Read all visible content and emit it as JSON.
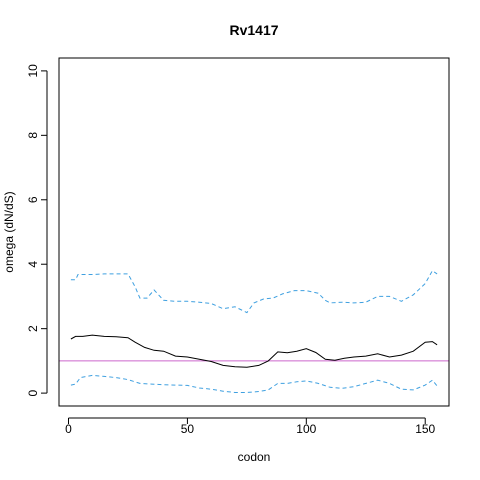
{
  "chart_data": {
    "type": "line",
    "title": "Rv1417",
    "xlabel": "codon",
    "ylabel": "omega (dN/dS)",
    "xlim": [
      -4,
      160
    ],
    "ylim": [
      -0.4,
      10.4
    ],
    "x_ticks": [
      0,
      50,
      100,
      150
    ],
    "y_ticks": [
      0,
      2,
      4,
      6,
      8,
      10
    ],
    "grid": false,
    "legend": "none",
    "colors": {
      "omega": "#000000",
      "ci": "#3fa0e0",
      "reference": "#cc66cc"
    },
    "reference_line": 1.0,
    "series": [
      {
        "style": "solid",
        "x": [
          1,
          3,
          6,
          10,
          15,
          20,
          25,
          28,
          32,
          36,
          40,
          45,
          50,
          55,
          60,
          65,
          70,
          75,
          80,
          84,
          88,
          92,
          96,
          100,
          104,
          108,
          112,
          116,
          120,
          125,
          130,
          135,
          140,
          145,
          150,
          153,
          155
        ],
        "values": [
          1.68,
          1.76,
          1.76,
          1.8,
          1.76,
          1.75,
          1.72,
          1.58,
          1.42,
          1.33,
          1.3,
          1.15,
          1.12,
          1.05,
          0.98,
          0.86,
          0.82,
          0.8,
          0.86,
          1.0,
          1.28,
          1.25,
          1.3,
          1.38,
          1.26,
          1.05,
          1.02,
          1.08,
          1.12,
          1.15,
          1.22,
          1.12,
          1.18,
          1.3,
          1.58,
          1.6,
          1.5
        ]
      },
      {
        "style": "dashed",
        "x": [
          1,
          3,
          4,
          10,
          15,
          20,
          25,
          28,
          30,
          33,
          36,
          40,
          45,
          50,
          55,
          60,
          65,
          70,
          75,
          78,
          82,
          86,
          90,
          95,
          100,
          105,
          108,
          110,
          115,
          120,
          125,
          130,
          135,
          140,
          145,
          150,
          153,
          155
        ],
        "values": [
          3.52,
          3.52,
          3.68,
          3.68,
          3.7,
          3.7,
          3.7,
          3.3,
          2.95,
          2.95,
          3.2,
          2.88,
          2.85,
          2.85,
          2.82,
          2.78,
          2.62,
          2.68,
          2.5,
          2.8,
          2.92,
          2.95,
          3.08,
          3.18,
          3.18,
          3.1,
          2.88,
          2.8,
          2.82,
          2.8,
          2.82,
          3.0,
          3.0,
          2.85,
          3.05,
          3.4,
          3.8,
          3.7
        ]
      },
      {
        "style": "dashed",
        "x": [
          1,
          3,
          5,
          10,
          15,
          20,
          25,
          30,
          35,
          40,
          45,
          50,
          55,
          60,
          65,
          70,
          75,
          80,
          84,
          88,
          92,
          96,
          100,
          105,
          110,
          115,
          120,
          125,
          130,
          135,
          140,
          145,
          150,
          153,
          155
        ],
        "values": [
          0.25,
          0.28,
          0.48,
          0.55,
          0.52,
          0.48,
          0.42,
          0.3,
          0.28,
          0.26,
          0.25,
          0.24,
          0.16,
          0.12,
          0.06,
          0.02,
          0.02,
          0.05,
          0.1,
          0.3,
          0.3,
          0.35,
          0.38,
          0.3,
          0.18,
          0.15,
          0.2,
          0.3,
          0.4,
          0.3,
          0.12,
          0.1,
          0.25,
          0.4,
          0.22
        ]
      }
    ]
  }
}
